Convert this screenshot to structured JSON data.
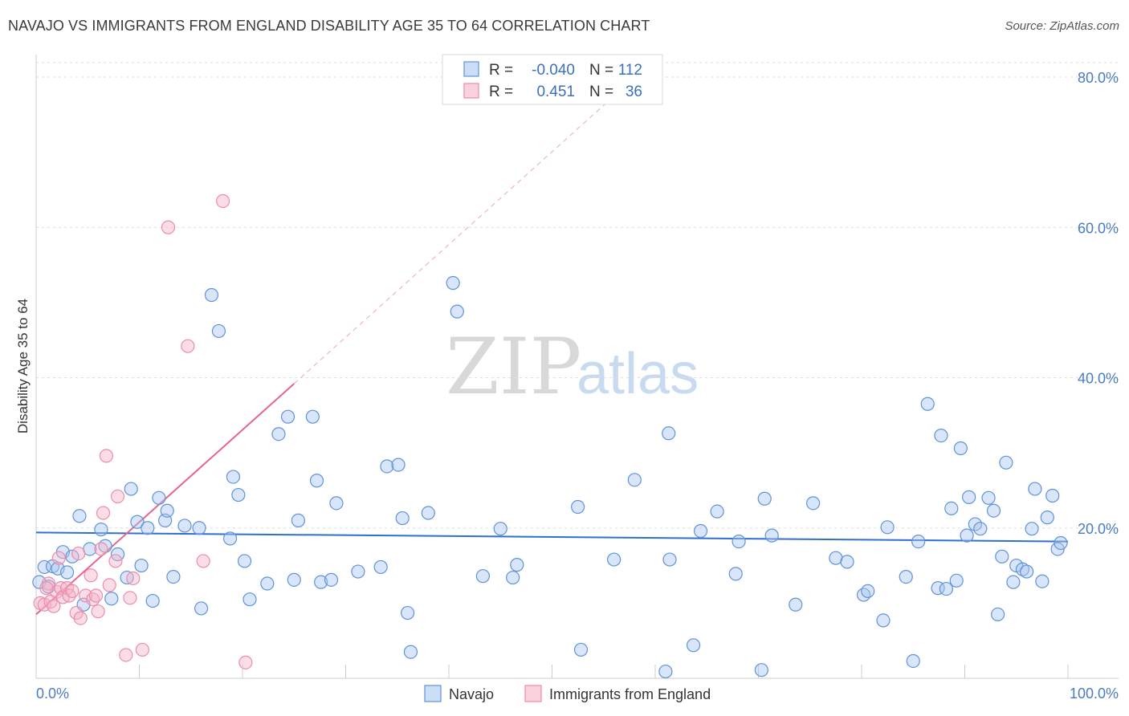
{
  "title": "NAVAJO VS IMMIGRANTS FROM ENGLAND DISABILITY AGE 35 TO 64 CORRELATION CHART",
  "source": "Source: ZipAtlas.com",
  "watermark": {
    "zip": "ZIP",
    "atlas": "atlas"
  },
  "colors": {
    "navajo": "#5f93d8",
    "england": "#ec8cab",
    "navajo_line": "#2f6fd0",
    "england_line": "#e8638f"
  },
  "legend": {
    "rows": [
      {
        "r_label": "R =",
        "r_value": "-0.040",
        "n_label": "N =",
        "n_value": "112"
      },
      {
        "r_label": "R =",
        "r_value": "0.451",
        "n_label": "N =",
        "n_value": "36"
      }
    ],
    "bottom": [
      "Navajo",
      "Immigrants from England"
    ]
  },
  "chart_data": {
    "type": "scatter",
    "ylabel": "Disability Age 35 to 64",
    "xlim": [
      0,
      100
    ],
    "ylim": [
      0,
      80
    ],
    "y_ticks": [
      {
        "value": 20,
        "label": "20.0%"
      },
      {
        "value": 40,
        "label": "40.0%"
      },
      {
        "value": 60,
        "label": "60.0%"
      },
      {
        "value": 80,
        "label": "80.0%"
      }
    ],
    "x_tick_labels": [
      {
        "value": 0,
        "label": "0.0%"
      },
      {
        "value": 100,
        "label": "100.0%"
      }
    ],
    "series": [
      {
        "name": "Navajo",
        "r": -0.04,
        "n": 112,
        "trend": {
          "x0": 0,
          "y0": 19.4,
          "x1": 100,
          "y1": 18.2
        },
        "points": [
          [
            0.3,
            12.8
          ],
          [
            0.8,
            14.8
          ],
          [
            1.2,
            12.2
          ],
          [
            1.6,
            14.9
          ],
          [
            2.1,
            14.6
          ],
          [
            2.6,
            16.8
          ],
          [
            3.0,
            14.1
          ],
          [
            3.5,
            16.2
          ],
          [
            4.2,
            21.6
          ],
          [
            4.6,
            9.8
          ],
          [
            5.2,
            17.2
          ],
          [
            6.3,
            19.8
          ],
          [
            6.7,
            17.6
          ],
          [
            7.3,
            10.6
          ],
          [
            7.9,
            16.5
          ],
          [
            8.8,
            13.4
          ],
          [
            9.2,
            25.2
          ],
          [
            9.8,
            20.8
          ],
          [
            10.2,
            15.0
          ],
          [
            10.8,
            20.0
          ],
          [
            11.3,
            10.3
          ],
          [
            11.9,
            24.0
          ],
          [
            12.5,
            21.0
          ],
          [
            12.7,
            22.3
          ],
          [
            13.3,
            13.5
          ],
          [
            14.4,
            20.3
          ],
          [
            15.8,
            20.0
          ],
          [
            16.0,
            9.3
          ],
          [
            17.0,
            51.0
          ],
          [
            17.7,
            46.2
          ],
          [
            18.8,
            18.6
          ],
          [
            19.1,
            26.8
          ],
          [
            19.6,
            24.4
          ],
          [
            20.2,
            15.6
          ],
          [
            20.7,
            10.5
          ],
          [
            22.4,
            12.6
          ],
          [
            23.5,
            32.5
          ],
          [
            24.4,
            34.8
          ],
          [
            25.0,
            13.1
          ],
          [
            25.4,
            21.0
          ],
          [
            26.8,
            34.8
          ],
          [
            27.2,
            26.3
          ],
          [
            27.6,
            12.8
          ],
          [
            28.6,
            13.1
          ],
          [
            29.1,
            23.3
          ],
          [
            31.2,
            14.2
          ],
          [
            33.4,
            14.8
          ],
          [
            34.0,
            28.2
          ],
          [
            35.1,
            28.4
          ],
          [
            35.5,
            21.3
          ],
          [
            36.0,
            8.7
          ],
          [
            36.3,
            3.5
          ],
          [
            38.0,
            22.0
          ],
          [
            40.4,
            52.6
          ],
          [
            40.8,
            48.8
          ],
          [
            43.3,
            13.6
          ],
          [
            45.0,
            19.9
          ],
          [
            46.2,
            13.4
          ],
          [
            46.6,
            15.1
          ],
          [
            52.5,
            22.8
          ],
          [
            52.8,
            3.8
          ],
          [
            56.0,
            15.8
          ],
          [
            58.0,
            26.4
          ],
          [
            61.0,
            0.9
          ],
          [
            61.3,
            32.6
          ],
          [
            61.4,
            15.8
          ],
          [
            63.7,
            4.4
          ],
          [
            64.4,
            19.6
          ],
          [
            66.0,
            22.2
          ],
          [
            67.8,
            13.9
          ],
          [
            68.1,
            18.2
          ],
          [
            70.3,
            1.1
          ],
          [
            70.6,
            23.9
          ],
          [
            71.3,
            19.0
          ],
          [
            73.6,
            9.8
          ],
          [
            75.3,
            23.3
          ],
          [
            77.5,
            16.0
          ],
          [
            78.6,
            15.5
          ],
          [
            80.2,
            11.1
          ],
          [
            80.6,
            11.6
          ],
          [
            82.1,
            7.7
          ],
          [
            82.5,
            20.1
          ],
          [
            84.3,
            13.5
          ],
          [
            85.0,
            2.3
          ],
          [
            85.5,
            18.2
          ],
          [
            86.4,
            36.5
          ],
          [
            87.4,
            12.0
          ],
          [
            87.7,
            32.3
          ],
          [
            88.2,
            11.9
          ],
          [
            88.7,
            22.6
          ],
          [
            89.2,
            13.0
          ],
          [
            89.6,
            30.6
          ],
          [
            90.2,
            19.0
          ],
          [
            90.4,
            24.1
          ],
          [
            91.0,
            20.5
          ],
          [
            91.5,
            19.9
          ],
          [
            92.3,
            24.0
          ],
          [
            92.8,
            22.3
          ],
          [
            93.2,
            8.5
          ],
          [
            93.6,
            16.2
          ],
          [
            94.0,
            28.7
          ],
          [
            94.7,
            12.8
          ],
          [
            95.0,
            15.0
          ],
          [
            95.6,
            14.5
          ],
          [
            96.0,
            14.2
          ],
          [
            96.5,
            19.9
          ],
          [
            96.8,
            25.2
          ],
          [
            97.5,
            12.9
          ],
          [
            98.0,
            21.4
          ],
          [
            98.5,
            24.3
          ],
          [
            99.0,
            17.2
          ],
          [
            99.3,
            18.0
          ]
        ]
      },
      {
        "name": "Immigrants from England",
        "r": 0.451,
        "n": 36,
        "trend": {
          "x0": 0,
          "y0": 8.5,
          "x1": 25,
          "y1": 39.2
        },
        "trend_extension": {
          "x0": 25,
          "y0": 39.2,
          "x1": 57,
          "y1": 78.7
        },
        "points": [
          [
            0.4,
            10.0
          ],
          [
            0.8,
            9.8
          ],
          [
            1.2,
            12.6
          ],
          [
            1.4,
            10.2
          ],
          [
            1.7,
            9.6
          ],
          [
            2.0,
            11.5
          ],
          [
            2.2,
            16.0
          ],
          [
            2.4,
            12.0
          ],
          [
            2.6,
            10.8
          ],
          [
            3.0,
            12.0
          ],
          [
            3.2,
            11.0
          ],
          [
            3.5,
            11.6
          ],
          [
            3.9,
            8.7
          ],
          [
            4.1,
            16.6
          ],
          [
            4.3,
            8.0
          ],
          [
            4.8,
            11.0
          ],
          [
            5.3,
            13.7
          ],
          [
            5.5,
            10.5
          ],
          [
            5.8,
            11.0
          ],
          [
            6.0,
            8.9
          ],
          [
            6.3,
            17.2
          ],
          [
            6.5,
            22.0
          ],
          [
            6.8,
            29.6
          ],
          [
            7.1,
            12.4
          ],
          [
            7.7,
            15.6
          ],
          [
            7.9,
            24.2
          ],
          [
            8.7,
            3.1
          ],
          [
            9.1,
            10.7
          ],
          [
            9.4,
            13.3
          ],
          [
            10.3,
            3.8
          ],
          [
            12.8,
            60.0
          ],
          [
            14.7,
            44.2
          ],
          [
            16.2,
            15.6
          ],
          [
            18.1,
            63.5
          ],
          [
            20.3,
            2.1
          ],
          [
            1.0,
            12.0
          ]
        ]
      }
    ]
  }
}
